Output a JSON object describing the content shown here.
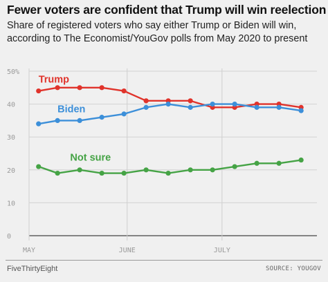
{
  "header": {
    "title": "Fewer voters are confident that Trump will win reelection",
    "subtitle_line1": "Share of registered voters who say either Trump or Biden will win,",
    "subtitle_line2": "according to The Economist/YouGov polls from May 2020 to present"
  },
  "footer": {
    "brand": "FiveThirtyEight",
    "source": "SOURCE: YOUGOV"
  },
  "chart_data": {
    "type": "line",
    "title": "Fewer voters are confident that Trump will win reelection",
    "subtitle": "Share of registered voters who say either Trump or Biden will win, according to The Economist/YouGov polls from May 2020 to present",
    "xlabel": "",
    "ylabel": "",
    "x_domain": [
      "2020-05-01",
      "2020-07-31"
    ],
    "x_ticks": [
      {
        "label": "MAY",
        "date": "2020-05-01"
      },
      {
        "label": "JUNE",
        "date": "2020-06-01"
      },
      {
        "label": "JULY",
        "date": "2020-07-01"
      }
    ],
    "ylim": [
      0,
      50
    ],
    "y_ticks": [
      0,
      10,
      20,
      30,
      40,
      50
    ],
    "y_tick_labels": [
      "0",
      "10",
      "20",
      "30",
      "40",
      "50%"
    ],
    "grid": true,
    "legend": "inline labels",
    "x": [
      "2020-05-04",
      "2020-05-10",
      "2020-05-17",
      "2020-05-24",
      "2020-05-31",
      "2020-06-07",
      "2020-06-14",
      "2020-06-21",
      "2020-06-28",
      "2020-07-05",
      "2020-07-12",
      "2020-07-19",
      "2020-07-26"
    ],
    "series": [
      {
        "name": "Trump",
        "color": "#e0332b",
        "values": [
          44,
          45,
          45,
          45,
          44,
          41,
          41,
          41,
          39,
          39,
          40,
          40,
          39
        ]
      },
      {
        "name": "Biden",
        "color": "#3c8fd9",
        "values": [
          34,
          35,
          35,
          36,
          37,
          39,
          40,
          39,
          40,
          40,
          39,
          39,
          38
        ]
      },
      {
        "name": "Not sure",
        "color": "#45a345",
        "values": [
          21,
          19,
          20,
          19,
          19,
          20,
          19,
          20,
          20,
          21,
          22,
          22,
          23
        ]
      }
    ]
  }
}
